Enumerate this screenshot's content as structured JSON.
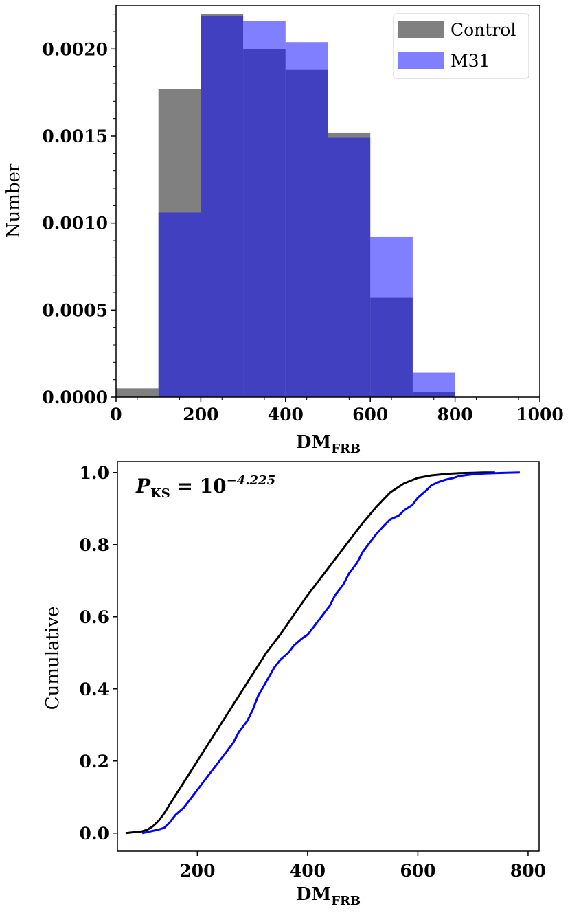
{
  "chart_data": [
    {
      "type": "bar",
      "subtype": "histogram",
      "xlabel": "DM",
      "xlabel_subscript": "FRB",
      "ylabel": "Number",
      "xlim": [
        0,
        1000
      ],
      "ylim": [
        0,
        0.00225
      ],
      "xticks": [
        0,
        200,
        400,
        600,
        800,
        1000
      ],
      "yticks": [
        0.0,
        0.0005,
        0.001,
        0.0015,
        0.002
      ],
      "ytick_labels": [
        "0.0000",
        "0.0005",
        "0.0010",
        "0.0015",
        "0.0020"
      ],
      "bin_edges": [
        0,
        100,
        200,
        300,
        400,
        500,
        600,
        700,
        800
      ],
      "series": [
        {
          "name": "Control",
          "color": "#808080",
          "values": [
            5e-05,
            0.00177,
            0.0022,
            0.002,
            0.00188,
            0.00152,
            0.00057,
            3e-05
          ]
        },
        {
          "name": "M31",
          "color": "#0000ff",
          "alpha": 0.5,
          "values": [
            0.0,
            0.00106,
            0.00219,
            0.00216,
            0.00204,
            0.00149,
            0.00092,
            0.00014
          ]
        }
      ],
      "legend": {
        "placement": "top-right",
        "entries": [
          "Control",
          "M31"
        ]
      }
    },
    {
      "type": "line",
      "subtype": "cumulative",
      "xlabel": "DM",
      "xlabel_subscript": "FRB",
      "ylabel": "Cumulative",
      "xlim": [
        55,
        820
      ],
      "ylim": [
        -0.05,
        1.03
      ],
      "xticks": [
        200,
        400,
        600,
        800
      ],
      "yticks": [
        0.0,
        0.2,
        0.4,
        0.6,
        0.8,
        1.0
      ],
      "ytick_labels": [
        "0.0",
        "0.2",
        "0.4",
        "0.6",
        "0.8",
        "1.0"
      ],
      "annotation": {
        "text_main": "P",
        "text_sub": "KS",
        "text_eq": " = 10",
        "text_exp": "−4.225"
      },
      "series": [
        {
          "name": "Control",
          "color": "#000000",
          "x": [
            70,
            100,
            110,
            120,
            130,
            140,
            150,
            175,
            200,
            225,
            250,
            275,
            300,
            325,
            350,
            375,
            400,
            425,
            450,
            475,
            500,
            525,
            550,
            575,
            600,
            625,
            650,
            675,
            700,
            720,
            740
          ],
          "y": [
            0.0,
            0.005,
            0.01,
            0.02,
            0.035,
            0.055,
            0.08,
            0.14,
            0.2,
            0.26,
            0.32,
            0.38,
            0.44,
            0.5,
            0.55,
            0.605,
            0.66,
            0.71,
            0.76,
            0.81,
            0.86,
            0.905,
            0.945,
            0.97,
            0.985,
            0.992,
            0.996,
            0.998,
            0.999,
            1.0,
            1.0
          ]
        },
        {
          "name": "M31",
          "color": "#0000ff",
          "x": [
            100,
            115,
            130,
            140,
            150,
            160,
            175,
            190,
            200,
            215,
            225,
            240,
            250,
            265,
            275,
            290,
            300,
            310,
            325,
            340,
            350,
            365,
            375,
            390,
            400,
            415,
            425,
            440,
            450,
            465,
            475,
            490,
            500,
            515,
            525,
            540,
            550,
            565,
            575,
            590,
            600,
            615,
            625,
            640,
            650,
            665,
            675,
            690,
            700,
            720,
            740,
            760,
            785
          ],
          "y": [
            0.0,
            0.005,
            0.01,
            0.015,
            0.03,
            0.05,
            0.07,
            0.1,
            0.12,
            0.15,
            0.17,
            0.2,
            0.22,
            0.25,
            0.28,
            0.31,
            0.34,
            0.38,
            0.42,
            0.46,
            0.48,
            0.5,
            0.52,
            0.54,
            0.55,
            0.58,
            0.6,
            0.63,
            0.66,
            0.69,
            0.72,
            0.75,
            0.78,
            0.81,
            0.83,
            0.855,
            0.87,
            0.88,
            0.895,
            0.91,
            0.93,
            0.95,
            0.965,
            0.975,
            0.98,
            0.985,
            0.99,
            0.993,
            0.995,
            0.997,
            0.998,
            0.999,
            1.0
          ]
        }
      ]
    }
  ]
}
